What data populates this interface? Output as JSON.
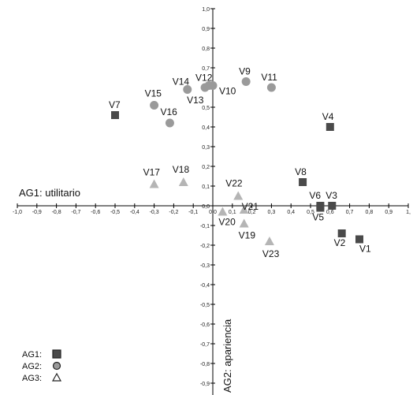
{
  "chart_data": {
    "type": "scatter",
    "xlim": [
      -1.0,
      1.0
    ],
    "ylim": [
      -1.0,
      1.0
    ],
    "xticks": [
      "-1,0",
      "-0,9",
      "-0,8",
      "-0,7",
      "-0,6",
      "-0,5",
      "-0,4",
      "-0,3",
      "-0,2",
      "-0,1",
      "0,0",
      "0,1",
      "0,2",
      "0,3",
      "0,4",
      "0,5",
      "0,6",
      "0,7",
      "0,8",
      "0,9",
      "1,"
    ],
    "yticks": [
      "1,0",
      "0,9",
      "0,8",
      "0,7",
      "0,6",
      "0,5",
      "0,4",
      "0,3",
      "0,2",
      "0,1",
      "0,0",
      "-0,1",
      "-0,2",
      "-0,3",
      "-0,4",
      "-0,5",
      "-0,6",
      "-0,7",
      "-0,8",
      "-0,9",
      "-1,0"
    ],
    "xlabel": "AG1: utilitario",
    "ylabel": "AG2: apariencia",
    "grid": false,
    "legend_position": "bottom-left",
    "series": [
      {
        "name": "AG1:",
        "marker": "square",
        "color": "#4a4a4a",
        "points": [
          {
            "label": "V1",
            "x": 0.75,
            "y": -0.17
          },
          {
            "label": "V2",
            "x": 0.66,
            "y": -0.14
          },
          {
            "label": "V3",
            "x": 0.61,
            "y": 0.0
          },
          {
            "label": "V4",
            "x": 0.6,
            "y": 0.4
          },
          {
            "label": "V5",
            "x": 0.55,
            "y": -0.01
          },
          {
            "label": "V6",
            "x": 0.55,
            "y": 0.0
          },
          {
            "label": "V7",
            "x": -0.5,
            "y": 0.46
          },
          {
            "label": "V8",
            "x": 0.46,
            "y": 0.12
          }
        ]
      },
      {
        "name": "AG2:",
        "marker": "circle",
        "color": "#9a9a9a",
        "points": [
          {
            "label": "V9",
            "x": 0.17,
            "y": 0.63
          },
          {
            "label": "V10",
            "x": 0.0,
            "y": 0.61
          },
          {
            "label": "V11",
            "x": 0.3,
            "y": 0.6
          },
          {
            "label": "V12",
            "x": -0.02,
            "y": 0.61
          },
          {
            "label": "V13",
            "x": -0.04,
            "y": 0.6
          },
          {
            "label": "V14",
            "x": -0.13,
            "y": 0.59
          },
          {
            "label": "V15",
            "x": -0.3,
            "y": 0.51
          },
          {
            "label": "V16",
            "x": -0.22,
            "y": 0.42
          }
        ]
      },
      {
        "name": "AG3:",
        "marker": "triangle",
        "color": "#b5b5b5",
        "points": [
          {
            "label": "V17",
            "x": -0.3,
            "y": 0.11
          },
          {
            "label": "V18",
            "x": -0.15,
            "y": 0.12
          },
          {
            "label": "V19",
            "x": 0.16,
            "y": -0.09
          },
          {
            "label": "V20",
            "x": 0.05,
            "y": -0.03
          },
          {
            "label": "V21",
            "x": 0.16,
            "y": -0.02
          },
          {
            "label": "V22",
            "x": 0.13,
            "y": 0.05
          },
          {
            "label": "V23",
            "x": 0.29,
            "y": -0.18
          }
        ]
      }
    ]
  }
}
